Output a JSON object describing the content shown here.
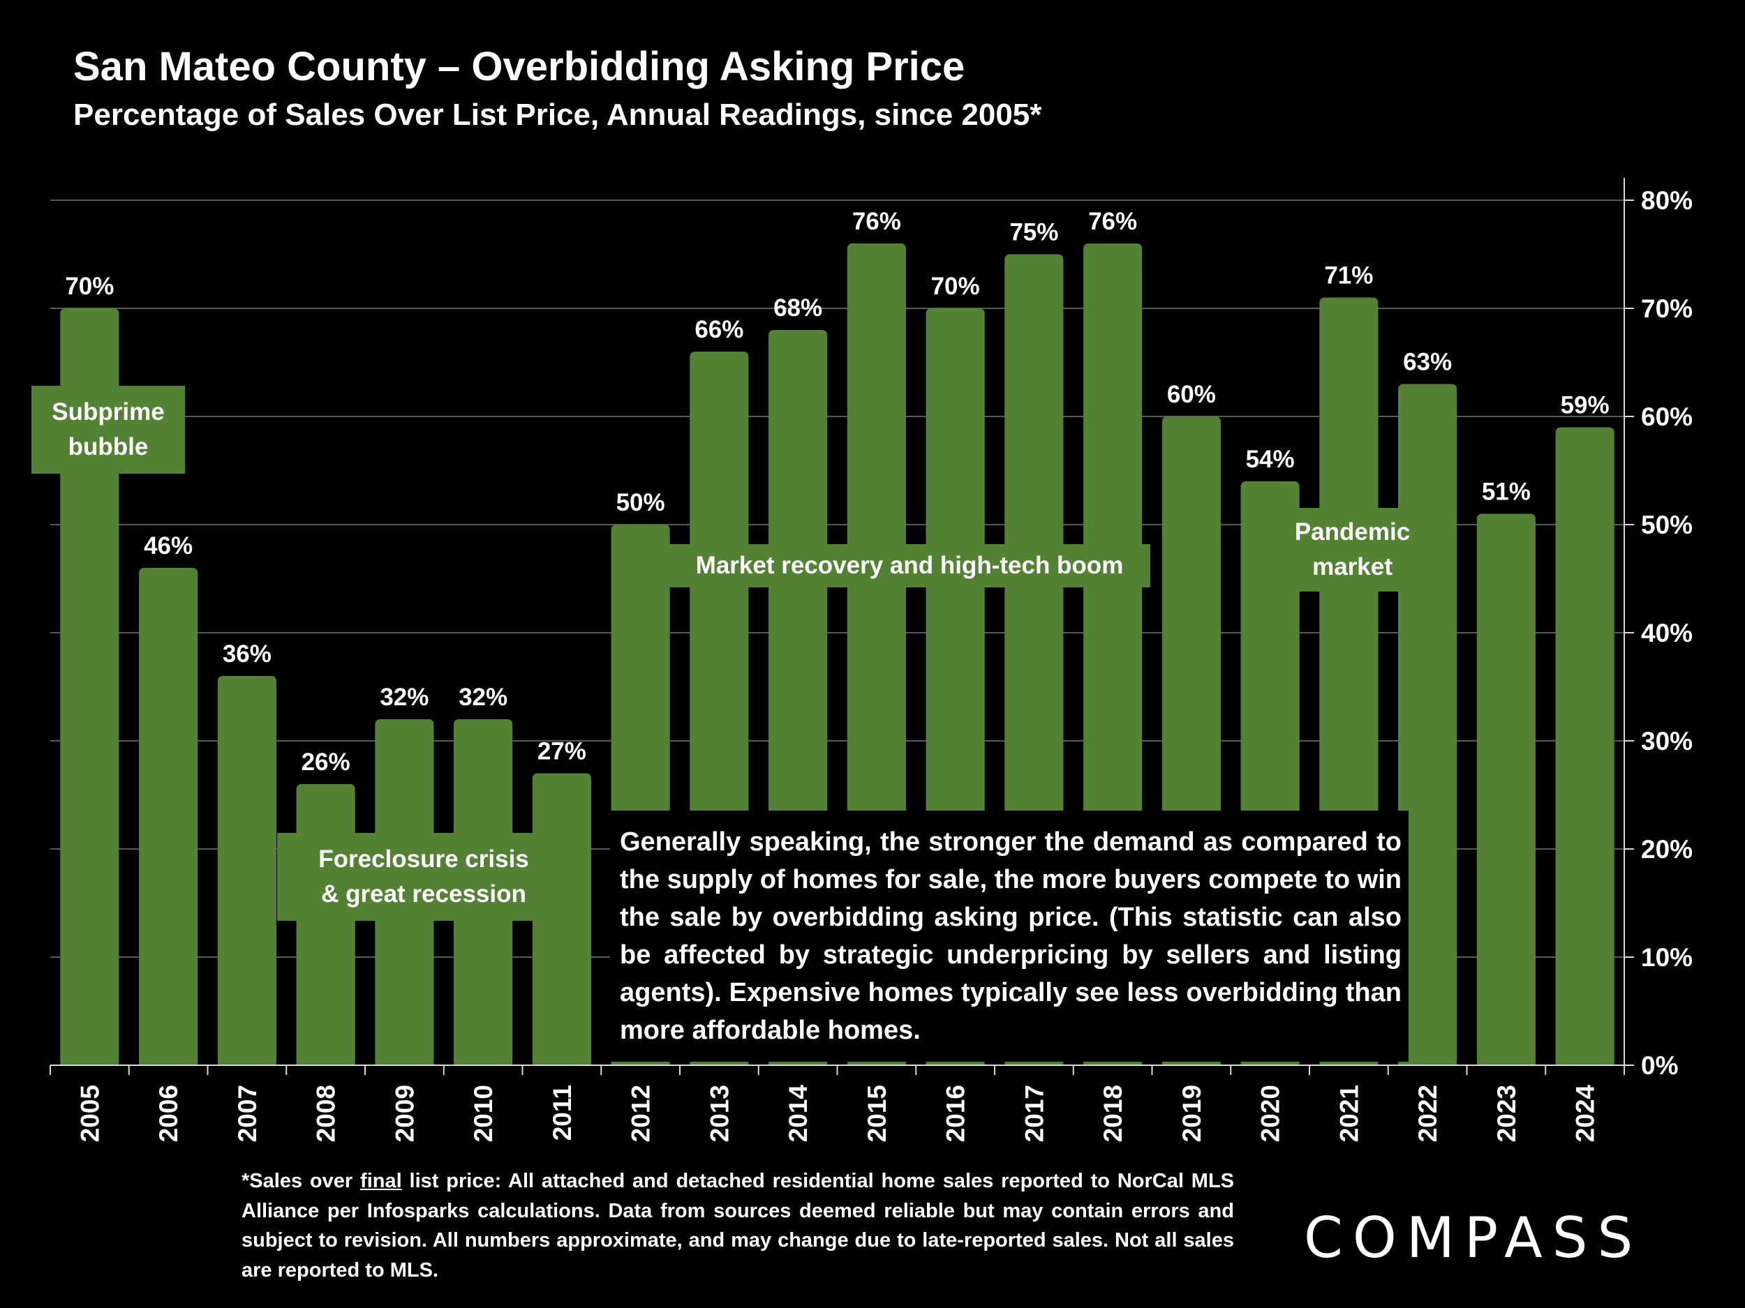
{
  "header": {
    "title": "San Mateo County – Overbidding Asking Price",
    "subtitle": "Percentage of Sales Over List Price, Annual Readings, since 2005*"
  },
  "chart_data": {
    "type": "bar",
    "categories": [
      "2005",
      "2006",
      "2007",
      "2008",
      "2009",
      "2010",
      "2011",
      "2012",
      "2013",
      "2014",
      "2015",
      "2016",
      "2017",
      "2018",
      "2019",
      "2020",
      "2021",
      "2022",
      "2023",
      "2024"
    ],
    "values": [
      70,
      46,
      36,
      26,
      32,
      32,
      27,
      50,
      66,
      68,
      76,
      70,
      75,
      76,
      60,
      54,
      71,
      63,
      51,
      59
    ],
    "data_labels": [
      "70%",
      "46%",
      "36%",
      "26%",
      "32%",
      "32%",
      "27%",
      "50%",
      "66%",
      "68%",
      "76%",
      "70%",
      "75%",
      "76%",
      "60%",
      "54%",
      "71%",
      "63%",
      "51%",
      "59%"
    ],
    "ylim": [
      0,
      80
    ],
    "y_axis_position": "right",
    "y_ticks": [
      "0%",
      "10%",
      "20%",
      "30%",
      "40%",
      "50%",
      "60%",
      "70%",
      "80%"
    ],
    "y_tick_values": [
      0,
      10,
      20,
      30,
      40,
      50,
      60,
      70,
      80
    ],
    "grid": true,
    "colors": {
      "bar": "#548235",
      "background": "#000000",
      "gridline": "#595959",
      "text": "#ffffff"
    }
  },
  "annotations": {
    "subprime": "Subprime bubble",
    "foreclosure_line1": "Foreclosure crisis",
    "foreclosure_line2": "& great recession",
    "recovery": "Market recovery and high-tech boom",
    "pandemic_line1": "Pandemic",
    "pandemic_line2": "market",
    "note": "Generally speaking, the stronger the demand as compared to the supply of homes for sale, the more buyers compete to win the sale by overbidding asking price. (This statistic can also be affected by strategic underpricing by sellers and listing agents). Expensive homes typically see less overbidding than more affordable homes."
  },
  "footnote": {
    "prefix": "*Sales over ",
    "underlined": "final",
    "rest": " list price: All attached and detached residential home sales reported to NorCal MLS Alliance per Infosparks calculations. Data from sources deemed reliable but may contain errors and subject to revision. All numbers approximate, and may change due to late-reported sales. Not all sales are reported to MLS."
  },
  "logo": {
    "text": "COMPASS"
  }
}
